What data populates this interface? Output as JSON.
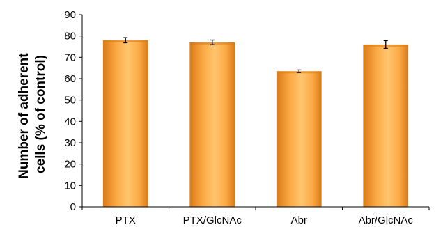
{
  "chart_data": {
    "type": "bar",
    "title": "",
    "xlabel": "",
    "ylabel_lines": [
      "Number of adherent",
      "cells (% of control)"
    ],
    "categories": [
      "PTX",
      "PTX/GlcNAc",
      "Abr",
      "Abr/GlcNAc"
    ],
    "values": [
      78,
      77,
      63.5,
      76
    ],
    "errors": [
      1.2,
      1.1,
      0.6,
      1.8
    ],
    "ylim": [
      0,
      90
    ],
    "yticks": [
      0,
      10,
      20,
      30,
      40,
      50,
      60,
      70,
      80,
      90
    ],
    "grid": false,
    "legend": "none",
    "colors": {
      "bar_edge": "#D97A18",
      "bar_mid": "#FBAA45",
      "bar_center": "#FFC56E",
      "axis": "#000000"
    }
  }
}
